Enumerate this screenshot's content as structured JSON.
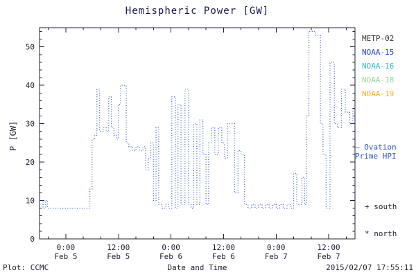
{
  "title": "Hemispheric Power [GW]",
  "colors": {
    "line": "#3355cc",
    "axis": "#222233",
    "title": "#14144a"
  },
  "legend": {
    "items": [
      {
        "label": "METP-02",
        "color": "#3a3a3a"
      },
      {
        "label": "NOAA-15",
        "color": "#2244cc"
      },
      {
        "label": "NOAA-16",
        "color": "#33bbcc"
      },
      {
        "label": "NOAA-18",
        "color": "#99d699"
      },
      {
        "label": "NOAA-19",
        "color": "#ffaa33"
      }
    ]
  },
  "annotations": {
    "ovation_line1": "— Ovation",
    "ovation_line2": "Prime HPI",
    "south": "+ south",
    "north": "* north"
  },
  "footer": {
    "plot_credit": "Plot: CCMC",
    "xlabel": "Date and Time",
    "timestamp": "2015/02/07 17:55:11"
  },
  "chart_data": {
    "type": "line",
    "style": "stepped-dotted",
    "title": "Hemispheric Power [GW]",
    "xlabel": "Date and Time",
    "ylabel": "P [GW]",
    "ylim": [
      0,
      55
    ],
    "yticks": [
      0,
      10,
      20,
      30,
      40,
      50
    ],
    "y_minor_step": 2,
    "xlim_hours": [
      -6,
      66
    ],
    "x_minor_step": 4,
    "xticks": [
      {
        "t": 0,
        "time": "0:00",
        "date": "Feb 5"
      },
      {
        "t": 12,
        "time": "12:00",
        "date": "Feb 5"
      },
      {
        "t": 24,
        "time": "0:00",
        "date": "Feb 6"
      },
      {
        "t": 36,
        "time": "12:00",
        "date": "Feb 6"
      },
      {
        "t": 48,
        "time": "0:00",
        "date": "Feb 7"
      },
      {
        "t": 60,
        "time": "12:00",
        "date": "Feb 7"
      }
    ],
    "grid": false,
    "legend_position": "right-outside",
    "series": [
      {
        "name": "Ovation Prime HPI",
        "color": "#3355cc",
        "points": [
          [
            -6.0,
            10
          ],
          [
            -5.2,
            8
          ],
          [
            -4.6,
            10
          ],
          [
            -4.2,
            8
          ],
          [
            5.5,
            13
          ],
          [
            6.0,
            26
          ],
          [
            6.6,
            27
          ],
          [
            7.1,
            39
          ],
          [
            7.7,
            28
          ],
          [
            8.5,
            29
          ],
          [
            9.2,
            28
          ],
          [
            9.8,
            37
          ],
          [
            10.4,
            29
          ],
          [
            11.0,
            27
          ],
          [
            11.6,
            26
          ],
          [
            12.0,
            35
          ],
          [
            12.5,
            40
          ],
          [
            13.2,
            40
          ],
          [
            13.8,
            25
          ],
          [
            14.4,
            24
          ],
          [
            15.2,
            23
          ],
          [
            16.0,
            24
          ],
          [
            16.8,
            23
          ],
          [
            17.6,
            24
          ],
          [
            18.2,
            18
          ],
          [
            18.8,
            21
          ],
          [
            19.4,
            25
          ],
          [
            20.0,
            10
          ],
          [
            20.6,
            29
          ],
          [
            21.2,
            9
          ],
          [
            22.0,
            8
          ],
          [
            22.8,
            9
          ],
          [
            23.5,
            8
          ],
          [
            24.2,
            37
          ],
          [
            25.0,
            8
          ],
          [
            25.6,
            35
          ],
          [
            26.3,
            9
          ],
          [
            27.2,
            39
          ],
          [
            28.0,
            9
          ],
          [
            28.6,
            8
          ],
          [
            29.2,
            30
          ],
          [
            29.9,
            9
          ],
          [
            30.6,
            31
          ],
          [
            31.3,
            22
          ],
          [
            32.0,
            9
          ],
          [
            32.6,
            25
          ],
          [
            33.2,
            29
          ],
          [
            34.0,
            22
          ],
          [
            34.8,
            29
          ],
          [
            35.6,
            25
          ],
          [
            36.2,
            21
          ],
          [
            36.9,
            30
          ],
          [
            37.7,
            30
          ],
          [
            38.5,
            12
          ],
          [
            39.3,
            23
          ],
          [
            40.0,
            22
          ],
          [
            40.8,
            9
          ],
          [
            41.6,
            8
          ],
          [
            42.4,
            9
          ],
          [
            43.2,
            8
          ],
          [
            44.0,
            9
          ],
          [
            44.8,
            8
          ],
          [
            45.6,
            9
          ],
          [
            46.4,
            8
          ],
          [
            47.2,
            9
          ],
          [
            48.0,
            8
          ],
          [
            48.8,
            9
          ],
          [
            49.6,
            8
          ],
          [
            50.5,
            9
          ],
          [
            51.4,
            8
          ],
          [
            52.0,
            17
          ],
          [
            52.7,
            9
          ],
          [
            53.9,
            16
          ],
          [
            54.5,
            9
          ],
          [
            54.9,
            32
          ],
          [
            55.5,
            54
          ],
          [
            57.0,
            53
          ],
          [
            58.1,
            30
          ],
          [
            58.7,
            22
          ],
          [
            59.4,
            8
          ],
          [
            60.3,
            46
          ],
          [
            61.3,
            30
          ],
          [
            62.0,
            29
          ],
          [
            62.9,
            39
          ],
          [
            63.8,
            33
          ],
          [
            64.8,
            30
          ],
          [
            65.5,
            34
          ]
        ]
      }
    ]
  }
}
